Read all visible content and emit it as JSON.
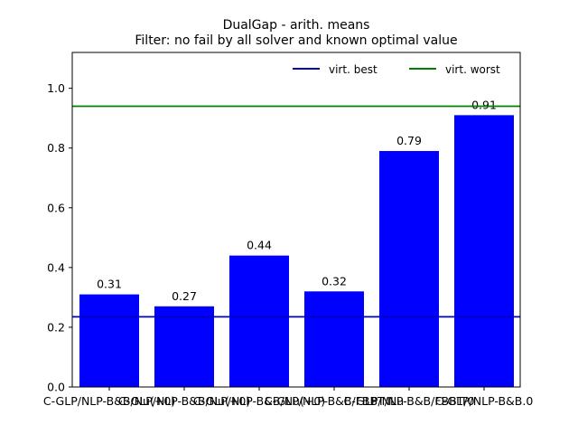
{
  "chart_data": {
    "type": "bar",
    "title_line1": "DualGap - arith. means",
    "title_line2": "Filter: no fail by all solver and known optimal value",
    "xlabel": "",
    "ylabel": "",
    "ylim": [
      0,
      1.12
    ],
    "yticks": [
      "0.0",
      "0.2",
      "0.4",
      "0.6",
      "0.8",
      "1.0"
    ],
    "grid": false,
    "legend_placement": "top-right",
    "bar_color": "#0000ff",
    "categories": [
      "C-GLP/NLP-B&B/Nu...",
      "C-GLP/NLP-B&B/Nu...",
      "C-GLP/NLP-B&B/Nu...",
      "C-GLP/NLP-B&B/FB...",
      "C-GLP/NLP-B&B/FB...",
      "C-GLP/NLP-B&B.0"
    ],
    "category_labels_raw": [
      "C-GLP/NLP-B&B/Nu(+0)",
      "C-GLP/NLP-B&B/Nu(+0)",
      "C-GLP/NLP-B&B/Nu(+0)",
      "C-GLP/NLP-B&B/FBBT/Nu",
      "C-GLP/NLP-B&B/FBBT/0",
      "C-GLP/NLP-B&B.0"
    ],
    "values": [
      0.31,
      0.27,
      0.44,
      0.32,
      0.79,
      0.91
    ],
    "data_labels": [
      "0.31",
      "0.27",
      "0.44",
      "0.32",
      "0.79",
      "0.91"
    ],
    "reference_lines": [
      {
        "name": "virt. best",
        "value": 0.235,
        "color": "#0000bf"
      },
      {
        "name": "virt. worst",
        "value": 0.94,
        "color": "#008000"
      }
    ]
  }
}
